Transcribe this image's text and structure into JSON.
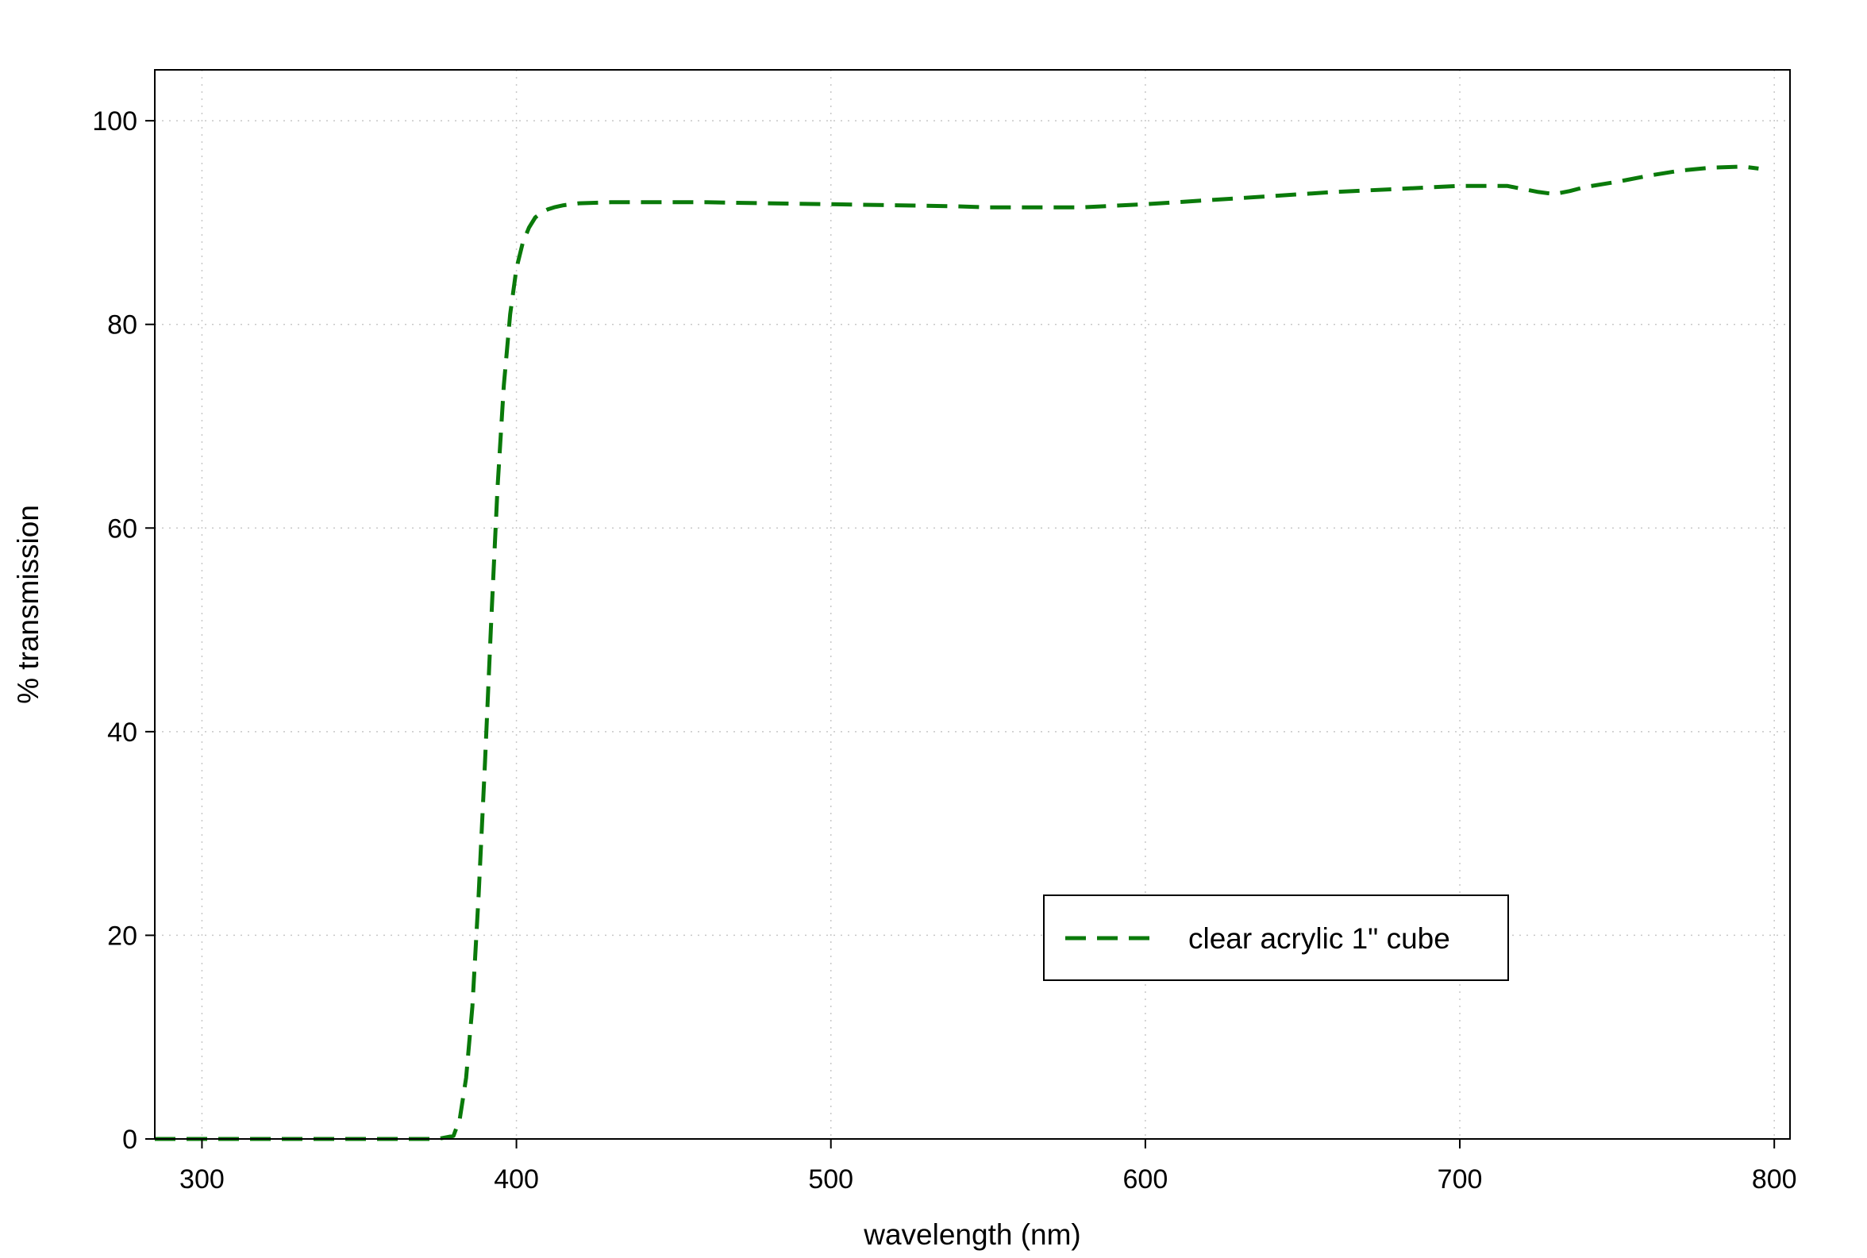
{
  "chart_data": {
    "type": "line",
    "title": "",
    "xlabel": "wavelength (nm)",
    "ylabel": "% transmission",
    "xlim": [
      285,
      805
    ],
    "ylim": [
      0,
      105
    ],
    "xticks": [
      300,
      400,
      500,
      600,
      700,
      800
    ],
    "yticks": [
      0,
      20,
      40,
      60,
      80,
      100
    ],
    "grid": true,
    "legend_position": "lower-right",
    "series": [
      {
        "name": "clear acrylic 1\" cube",
        "color": "#0a7a0a",
        "line_style": "dashed",
        "x": [
          285,
          300,
          320,
          340,
          360,
          375,
          380,
          382,
          384,
          386,
          388,
          390,
          392,
          394,
          396,
          398,
          400,
          402,
          404,
          406,
          408,
          410,
          412,
          415,
          420,
          430,
          440,
          450,
          460,
          480,
          500,
          520,
          540,
          550,
          560,
          580,
          600,
          620,
          640,
          660,
          680,
          700,
          715,
          720,
          725,
          730,
          735,
          740,
          750,
          760,
          770,
          780,
          790,
          795
        ],
        "y": [
          0,
          0,
          0,
          0,
          0,
          0,
          0.3,
          2,
          6,
          13,
          24,
          37,
          51,
          64,
          74,
          81,
          85.5,
          88,
          89.5,
          90.5,
          91,
          91.3,
          91.5,
          91.7,
          91.9,
          92,
          92,
          92,
          92,
          91.9,
          91.8,
          91.7,
          91.6,
          91.5,
          91.5,
          91.5,
          91.8,
          92.2,
          92.6,
          93,
          93.3,
          93.6,
          93.6,
          93.3,
          93,
          92.8,
          93.1,
          93.5,
          94,
          94.6,
          95.1,
          95.4,
          95.5,
          95.3
        ]
      }
    ]
  }
}
